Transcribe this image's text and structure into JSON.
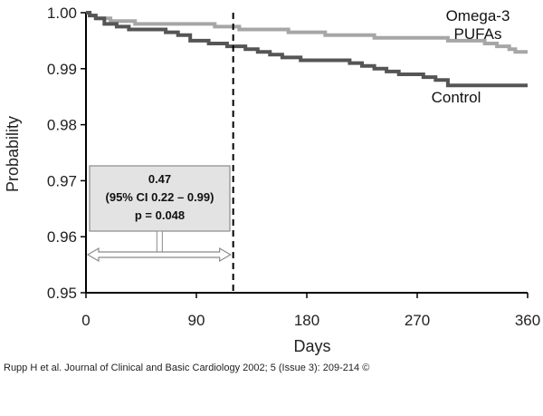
{
  "chart_data": {
    "type": "line",
    "title": "",
    "xlabel": "Days",
    "ylabel": "Probability",
    "xlim": [
      0,
      360
    ],
    "ylim": [
      0.95,
      1.0
    ],
    "x_ticks": [
      0,
      90,
      180,
      270,
      360
    ],
    "x_tick_labels": [
      "0",
      "90",
      "180",
      "270",
      "360"
    ],
    "y_ticks": [
      0.95,
      0.96,
      0.97,
      0.98,
      0.99,
      1.0
    ],
    "y_tick_labels": [
      "0.95",
      "0.96",
      "0.97",
      "0.98",
      "0.99",
      "1.00"
    ],
    "grid": false,
    "series": [
      {
        "name": "Omega-3 PUFAs",
        "label_lines": [
          "Omega-3",
          "PUFAs"
        ],
        "color": "#a6a6a6",
        "x": [
          0,
          3,
          8,
          20,
          40,
          60,
          85,
          105,
          125,
          140,
          165,
          195,
          215,
          235,
          255,
          275,
          295,
          315,
          325,
          335,
          345,
          350,
          360
        ],
        "y": [
          1.0,
          0.9995,
          0.999,
          0.9985,
          0.998,
          0.998,
          0.998,
          0.9975,
          0.997,
          0.997,
          0.9965,
          0.996,
          0.996,
          0.9955,
          0.9955,
          0.9955,
          0.995,
          0.995,
          0.9945,
          0.994,
          0.9935,
          0.993,
          0.993
        ]
      },
      {
        "name": "Control",
        "label_lines": [
          "Control"
        ],
        "color": "#555555",
        "x": [
          0,
          3,
          8,
          15,
          25,
          35,
          50,
          65,
          75,
          85,
          100,
          115,
          130,
          140,
          150,
          160,
          175,
          200,
          215,
          225,
          235,
          245,
          255,
          275,
          285,
          295,
          360
        ],
        "y": [
          1.0,
          0.9995,
          0.999,
          0.998,
          0.9975,
          0.997,
          0.997,
          0.9965,
          0.996,
          0.995,
          0.9945,
          0.994,
          0.9935,
          0.993,
          0.9925,
          0.992,
          0.9915,
          0.9915,
          0.991,
          0.9905,
          0.99,
          0.9895,
          0.989,
          0.9885,
          0.988,
          0.987,
          0.987
        ]
      }
    ],
    "reference_line": {
      "x": 120,
      "style": "dashed"
    },
    "annotation": {
      "lines": [
        "0.47",
        "(95% CI 0.22 – 0.99)",
        "p = 0.048"
      ],
      "range": [
        0,
        120
      ]
    }
  },
  "citation": "Rupp H et al. Journal of Clinical and Basic Cardiology 2002; 5 (Issue 3): 209-214 ©"
}
